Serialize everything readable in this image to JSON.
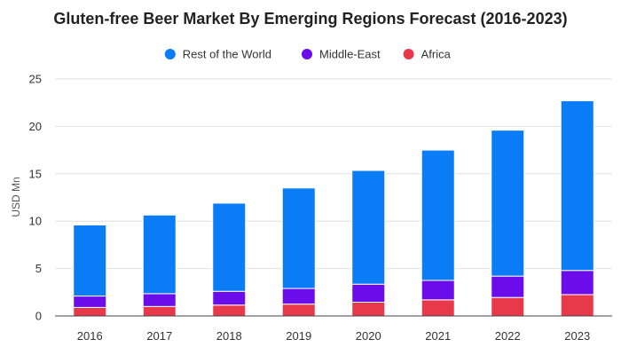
{
  "chart_data": {
    "type": "bar",
    "stacked": true,
    "title": "Gluten-free Beer Market By Emerging Regions Forecast (2016-2023)",
    "xlabel": "",
    "ylabel": "USD Mn",
    "categories": [
      "2016",
      "2017",
      "2018",
      "2019",
      "2020",
      "2021",
      "2022",
      "2023"
    ],
    "ylim": [
      0,
      25
    ],
    "yticks": [
      0,
      5,
      10,
      15,
      20,
      25
    ],
    "grid": true,
    "legend_position": "top-center",
    "series": [
      {
        "name": "Africa",
        "color": "#e8394a",
        "values": [
          0.9,
          1.0,
          1.15,
          1.25,
          1.45,
          1.7,
          1.95,
          2.25
        ]
      },
      {
        "name": "Middle-East",
        "color": "#6a0dea",
        "values": [
          1.2,
          1.35,
          1.45,
          1.65,
          1.9,
          2.05,
          2.25,
          2.55
        ]
      },
      {
        "name": "Rest of the World",
        "color": "#0a7cf6",
        "values": [
          7.5,
          8.3,
          9.3,
          10.6,
          12.0,
          13.75,
          15.4,
          17.9
        ]
      }
    ],
    "legend_order": [
      "Rest of the World",
      "Middle-East",
      "Africa"
    ]
  }
}
